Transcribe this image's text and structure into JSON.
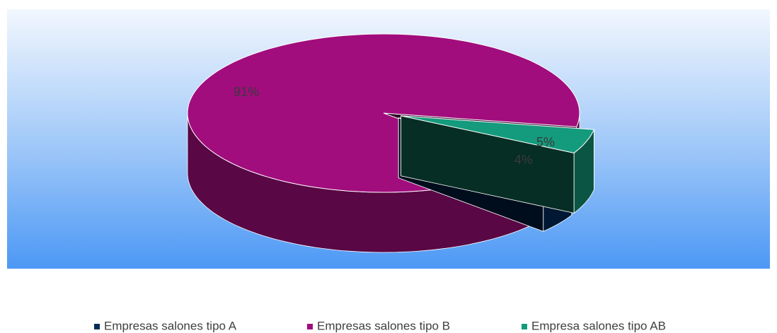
{
  "chart_data": {
    "type": "pie3d",
    "categories": [
      "Empresas salones tipo A",
      "Empresas salones tipo B",
      "Empresa salones tipo AB"
    ],
    "values": [
      4,
      91,
      5
    ],
    "value_labels": [
      "4%",
      "91%",
      "5%"
    ],
    "colors": [
      "#002c5c",
      "#a10d7d",
      "#149a7c"
    ],
    "legend": "bottom"
  }
}
